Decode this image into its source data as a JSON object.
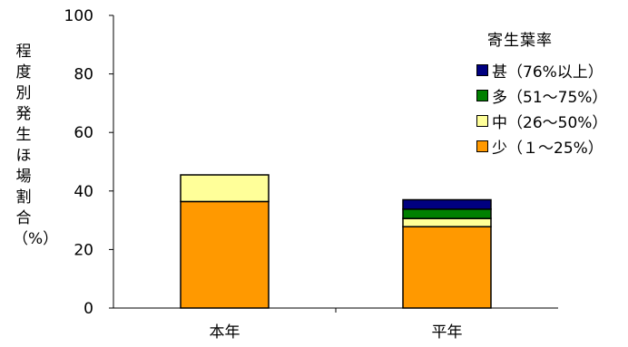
{
  "chart_data": {
    "type": "bar",
    "stacked": true,
    "ylabel": "程度別発生ほ場割合（%）",
    "ylabel_chars": [
      "程",
      "度",
      "別",
      "発",
      "生",
      "ほ",
      "場",
      "割",
      "合",
      "（%）"
    ],
    "ylim": [
      0,
      100
    ],
    "yticks": [
      0,
      20,
      40,
      60,
      80,
      100
    ],
    "categories": [
      "本年",
      "平年"
    ],
    "legend_title": "寄生葉率",
    "legend_position": "top-right",
    "grid": false,
    "series": [
      {
        "name": "少（１～25%）",
        "color": "#ff9900",
        "values": [
          36.4,
          27.8
        ]
      },
      {
        "name": "中（26～50%）",
        "color": "#ffff99",
        "values": [
          9.1,
          2.8
        ]
      },
      {
        "name": "多（51～75%）",
        "color": "#008000",
        "values": [
          0,
          3.2
        ]
      },
      {
        "name": "甚（76%以上）",
        "color": "#000080",
        "values": [
          0,
          3.2
        ]
      }
    ],
    "legend_order": [
      3,
      2,
      1,
      0
    ]
  }
}
